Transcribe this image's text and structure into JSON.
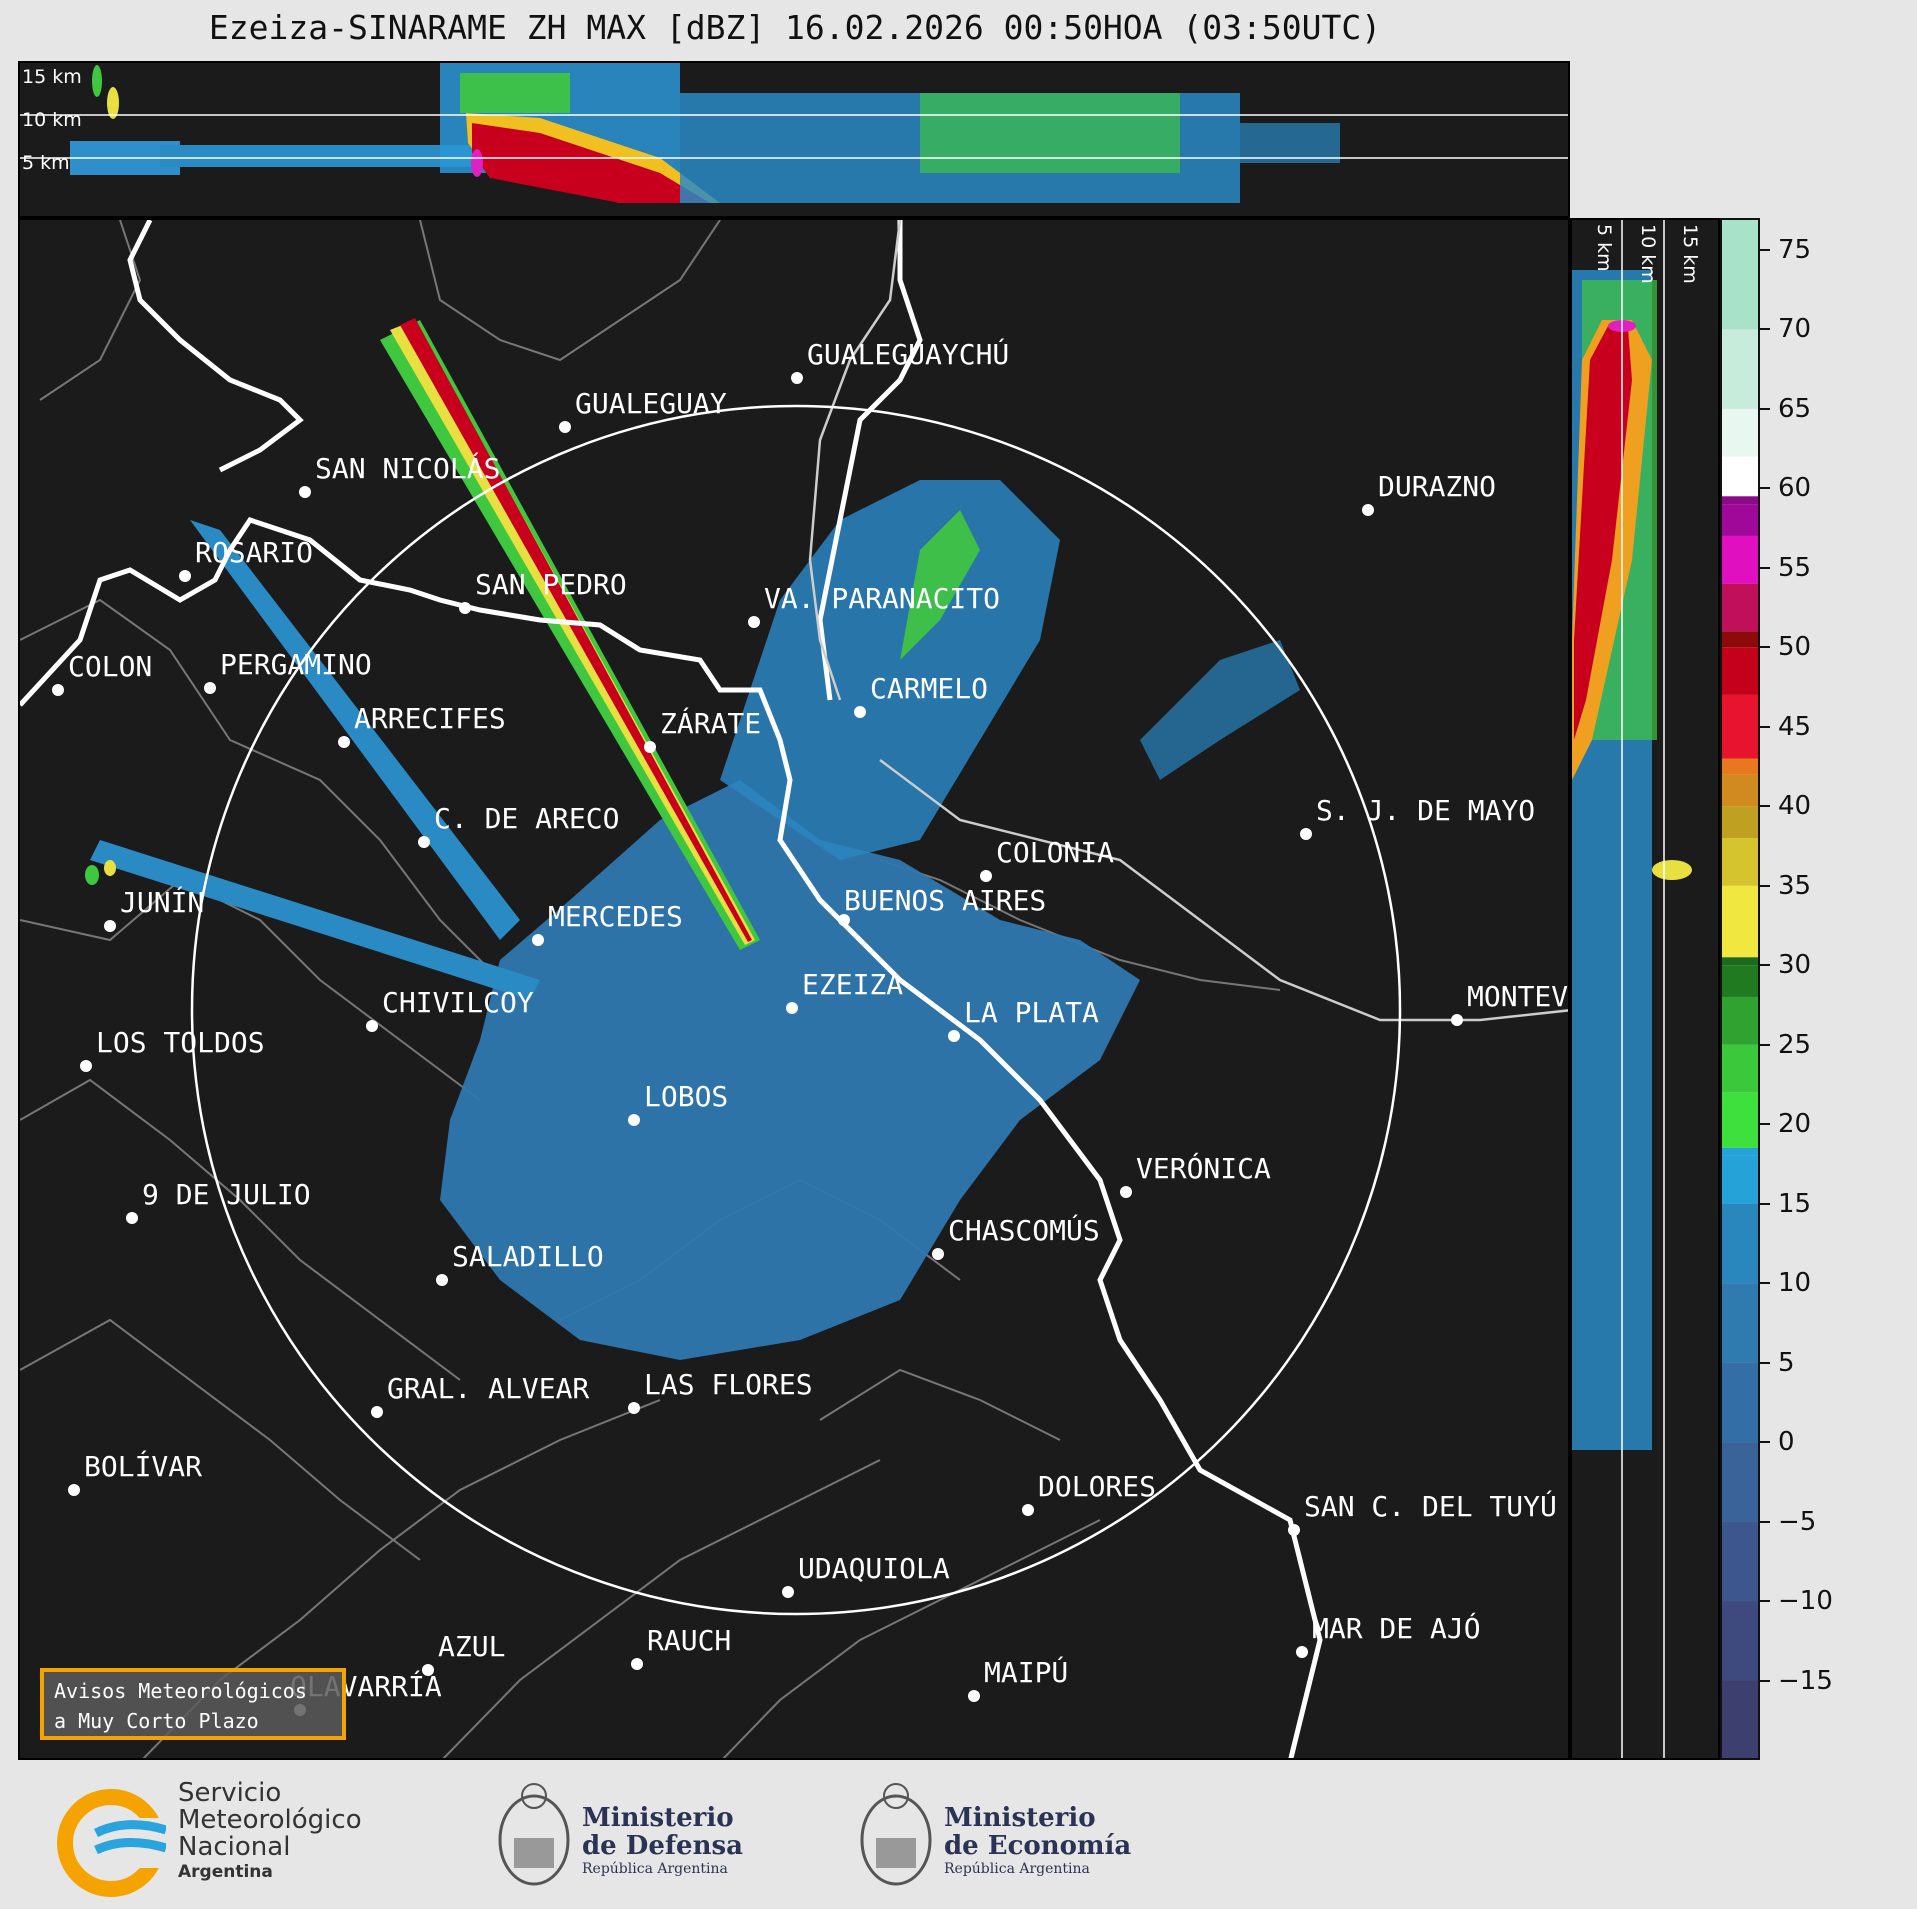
{
  "title": "Ezeiza-SINARAME ZH MAX [dBZ] 16.02.2026 00:50HOA (03:50UTC)",
  "top_panel": {
    "height_labels": [
      "15 km",
      "10 km",
      "5 km"
    ]
  },
  "right_panel": {
    "height_labels": [
      "5 km",
      "10 km",
      "15 km"
    ]
  },
  "colorbar": {
    "unit": "dBZ",
    "ticks": [
      "75",
      "70",
      "65",
      "60",
      "55",
      "50",
      "45",
      "40",
      "35",
      "30",
      "25",
      "20",
      "15",
      "10",
      "5",
      "0",
      "−5",
      "−10",
      "−15"
    ],
    "tick_values": [
      75,
      70,
      65,
      60,
      55,
      50,
      45,
      40,
      35,
      30,
      25,
      20,
      15,
      10,
      5,
      0,
      -5,
      -10,
      -15
    ],
    "range": [
      -20,
      77
    ]
  },
  "cities": [
    {
      "name": "ROSARIO"
    },
    {
      "name": "GUALEGUAYCHÚ"
    },
    {
      "name": "GUALEGUAY"
    },
    {
      "name": "SAN NICOLÁS"
    },
    {
      "name": "DURAZNO"
    },
    {
      "name": "SAN PEDRO"
    },
    {
      "name": "VA. PARANACITO"
    },
    {
      "name": "COLON"
    },
    {
      "name": "PERGAMINO"
    },
    {
      "name": "CARMELO"
    },
    {
      "name": "ARRECIFES"
    },
    {
      "name": "ZÁRATE"
    },
    {
      "name": "S. J. DE MAYO"
    },
    {
      "name": "C. DE ARECO"
    },
    {
      "name": "COLONIA"
    },
    {
      "name": "JUNÍN"
    },
    {
      "name": "BUENOS AIRES"
    },
    {
      "name": "MERCEDES"
    },
    {
      "name": "EZEIZA"
    },
    {
      "name": "MONTEV"
    },
    {
      "name": "CHIVILCOY"
    },
    {
      "name": "LA PLATA"
    },
    {
      "name": "LOS TOLDOS"
    },
    {
      "name": "LOBOS"
    },
    {
      "name": "VERÓNICA"
    },
    {
      "name": "9 DE JULIO"
    },
    {
      "name": "CHASCOMÚS"
    },
    {
      "name": "SALADILLO"
    },
    {
      "name": "GRAL. ALVEAR"
    },
    {
      "name": "LAS FLORES"
    },
    {
      "name": "BOLÍVAR"
    },
    {
      "name": "DOLORES"
    },
    {
      "name": "SAN C. DEL TUYÚ"
    },
    {
      "name": "UDAQUIOLA"
    },
    {
      "name": "MAR DE AJÓ"
    },
    {
      "name": "AZUL"
    },
    {
      "name": "RAUCH"
    },
    {
      "name": "OLAVARRÍA"
    },
    {
      "name": "MAIPÚ"
    }
  ],
  "notice": {
    "line1": "Avisos Meteorológicos",
    "line2": "a Muy Corto Plazo"
  },
  "logos": {
    "smn": {
      "line1": "Servicio",
      "line2": "Meteorológico",
      "line3": "Nacional",
      "line4": "Argentina"
    },
    "defensa": {
      "line1": "Ministerio",
      "line2": "de Defensa",
      "line3": "República Argentina"
    },
    "economia": {
      "line1": "Ministerio",
      "line2": "de Economía",
      "line3": "República Argentina"
    }
  },
  "colors": {
    "background": "#1b1b1b",
    "page": "#e6e6e6",
    "notice_border": "#f5a300",
    "smn_blue": "#2aa4dc",
    "smn_orange": "#f5a300"
  }
}
